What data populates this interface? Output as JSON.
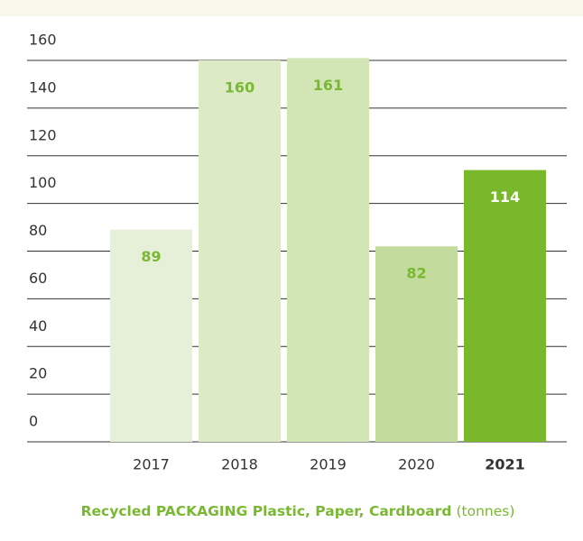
{
  "chart_data": {
    "type": "bar",
    "title": "Recycled PACKAGING Plastic, Paper, Cardboard",
    "unit": "(tonnes)",
    "categories": [
      "2017",
      "2018",
      "2019",
      "2020",
      "2021"
    ],
    "values": [
      89,
      160,
      161,
      82,
      114
    ],
    "colors": [
      "#e6f0d8",
      "#dcebc6",
      "#d2e5b4",
      "#c3dc9e",
      "#78b82a"
    ],
    "value_label_colors": [
      "#7ab833",
      "#7ab833",
      "#7ab833",
      "#7ab833",
      "#ffffff"
    ],
    "category_weights": [
      "normal",
      "normal",
      "normal",
      "normal",
      "bold"
    ],
    "ylim": [
      0,
      160
    ],
    "yticks": [
      0,
      20,
      40,
      60,
      80,
      100,
      120,
      140,
      160
    ],
    "grid": true
  }
}
